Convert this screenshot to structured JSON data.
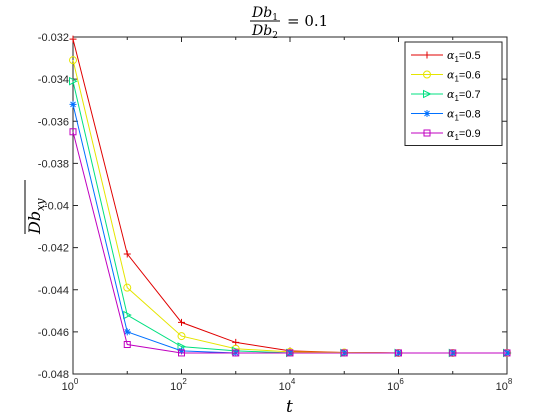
{
  "chart_data": {
    "type": "line",
    "title": {
      "num_base": "Db",
      "num_sub": "1",
      "den_base": "Db",
      "den_sub": "2",
      "rhs": "= 0.1"
    },
    "xlabel": "t",
    "ylabel": {
      "base": "Db",
      "sub": "xy"
    },
    "xscale": "log",
    "x": [
      1,
      10,
      100,
      1000,
      10000,
      100000,
      1000000,
      10000000,
      100000000
    ],
    "xlim": [
      1,
      100000000
    ],
    "ylim": [
      -0.048,
      -0.032
    ],
    "x_ticks": [
      {
        "base": "10",
        "exp": "0"
      },
      {
        "base": "10",
        "exp": "2"
      },
      {
        "base": "10",
        "exp": "4"
      },
      {
        "base": "10",
        "exp": "6"
      },
      {
        "base": "10",
        "exp": "8"
      }
    ],
    "y_ticks": [
      "-0.032",
      "-0.034",
      "-0.036",
      "-0.038",
      "-0.04",
      "-0.042",
      "-0.044",
      "-0.046",
      "-0.048"
    ],
    "grid": false,
    "legend_position": "top-right",
    "series": [
      {
        "name": {
          "sym": "α",
          "sub": "1",
          "rest": "=0.5"
        },
        "color": "#e00000",
        "marker": "plus",
        "values": [
          -0.0321,
          -0.0423,
          -0.04555,
          -0.0465,
          -0.0469,
          -0.04698,
          -0.047,
          -0.047,
          -0.047
        ]
      },
      {
        "name": {
          "sym": "α",
          "sub": "1",
          "rest": "=0.6"
        },
        "color": "#e5e500",
        "marker": "circle",
        "values": [
          -0.0331,
          -0.0439,
          -0.0462,
          -0.0468,
          -0.04695,
          -0.04698,
          -0.047,
          -0.047,
          -0.047
        ]
      },
      {
        "name": {
          "sym": "α",
          "sub": "1",
          "rest": "=0.7"
        },
        "color": "#00e080",
        "marker": "triangle",
        "values": [
          -0.0341,
          -0.0452,
          -0.0467,
          -0.0469,
          -0.047,
          -0.047,
          -0.047,
          -0.047,
          -0.047
        ]
      },
      {
        "name": {
          "sym": "α",
          "sub": "1",
          "rest": "=0.8"
        },
        "color": "#0070ff",
        "marker": "star",
        "values": [
          -0.0352,
          -0.046,
          -0.0469,
          -0.047,
          -0.047,
          -0.047,
          -0.047,
          -0.047,
          -0.047
        ]
      },
      {
        "name": {
          "sym": "α",
          "sub": "1",
          "rest": "=0.9"
        },
        "color": "#c000c0",
        "marker": "square",
        "values": [
          -0.0365,
          -0.0466,
          -0.047,
          -0.047,
          -0.047,
          -0.047,
          -0.047,
          -0.047,
          -0.047
        ]
      }
    ]
  }
}
